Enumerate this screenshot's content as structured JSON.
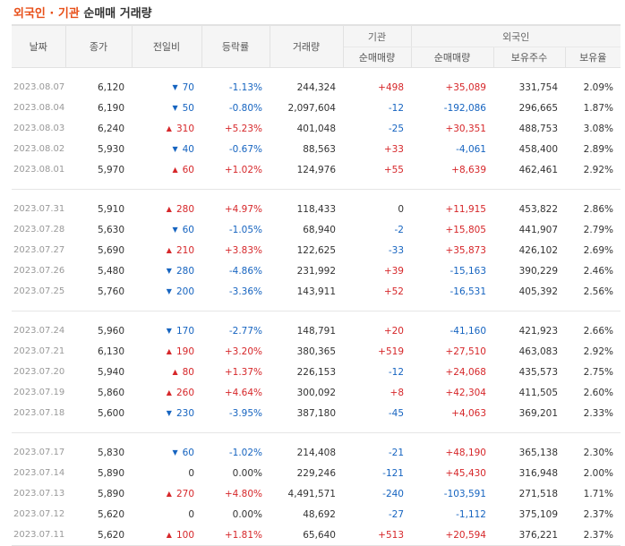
{
  "title": {
    "part1": "외국인",
    "dot": "·",
    "part2": "기관",
    "rest": "순매매 거래량"
  },
  "headers": {
    "date": "날짜",
    "close": "종가",
    "change": "전일비",
    "rate": "등락률",
    "volume": "거래량",
    "inst_group": "기관",
    "inst_net": "순매매량",
    "foreign_group": "외국인",
    "foreign_net": "순매매량",
    "foreign_hold": "보유주수",
    "foreign_ratio": "보유율"
  },
  "colors": {
    "up": "#d6272a",
    "down": "#1664c0",
    "accent": "#e8501a"
  },
  "icons": {
    "up": "arrow-up-icon",
    "down": "arrow-down-icon"
  },
  "rows": [
    {
      "date": "2023.08.07",
      "close": "6,120",
      "dir": "down",
      "change": "70",
      "rate": "-1.13%",
      "volume": "244,324",
      "inst": "+498",
      "foreign": "+35,089",
      "hold": "331,754",
      "ratio": "2.09%"
    },
    {
      "date": "2023.08.04",
      "close": "6,190",
      "dir": "down",
      "change": "50",
      "rate": "-0.80%",
      "volume": "2,097,604",
      "inst": "-12",
      "foreign": "-192,086",
      "hold": "296,665",
      "ratio": "1.87%"
    },
    {
      "date": "2023.08.03",
      "close": "6,240",
      "dir": "up",
      "change": "310",
      "rate": "+5.23%",
      "volume": "401,048",
      "inst": "-25",
      "foreign": "+30,351",
      "hold": "488,753",
      "ratio": "3.08%"
    },
    {
      "date": "2023.08.02",
      "close": "5,930",
      "dir": "down",
      "change": "40",
      "rate": "-0.67%",
      "volume": "88,563",
      "inst": "+33",
      "foreign": "-4,061",
      "hold": "458,400",
      "ratio": "2.89%"
    },
    {
      "date": "2023.08.01",
      "close": "5,970",
      "dir": "up",
      "change": "60",
      "rate": "+1.02%",
      "volume": "124,976",
      "inst": "+55",
      "foreign": "+8,639",
      "hold": "462,461",
      "ratio": "2.92%"
    },
    {
      "date": "2023.07.31",
      "close": "5,910",
      "dir": "up",
      "change": "280",
      "rate": "+4.97%",
      "volume": "118,433",
      "inst": "0",
      "foreign": "+11,915",
      "hold": "453,822",
      "ratio": "2.86%"
    },
    {
      "date": "2023.07.28",
      "close": "5,630",
      "dir": "down",
      "change": "60",
      "rate": "-1.05%",
      "volume": "68,940",
      "inst": "-2",
      "foreign": "+15,805",
      "hold": "441,907",
      "ratio": "2.79%"
    },
    {
      "date": "2023.07.27",
      "close": "5,690",
      "dir": "up",
      "change": "210",
      "rate": "+3.83%",
      "volume": "122,625",
      "inst": "-33",
      "foreign": "+35,873",
      "hold": "426,102",
      "ratio": "2.69%"
    },
    {
      "date": "2023.07.26",
      "close": "5,480",
      "dir": "down",
      "change": "280",
      "rate": "-4.86%",
      "volume": "231,992",
      "inst": "+39",
      "foreign": "-15,163",
      "hold": "390,229",
      "ratio": "2.46%"
    },
    {
      "date": "2023.07.25",
      "close": "5,760",
      "dir": "down",
      "change": "200",
      "rate": "-3.36%",
      "volume": "143,911",
      "inst": "+52",
      "foreign": "-16,531",
      "hold": "405,392",
      "ratio": "2.56%"
    },
    {
      "date": "2023.07.24",
      "close": "5,960",
      "dir": "down",
      "change": "170",
      "rate": "-2.77%",
      "volume": "148,791",
      "inst": "+20",
      "foreign": "-41,160",
      "hold": "421,923",
      "ratio": "2.66%"
    },
    {
      "date": "2023.07.21",
      "close": "6,130",
      "dir": "up",
      "change": "190",
      "rate": "+3.20%",
      "volume": "380,365",
      "inst": "+519",
      "foreign": "+27,510",
      "hold": "463,083",
      "ratio": "2.92%"
    },
    {
      "date": "2023.07.20",
      "close": "5,940",
      "dir": "up",
      "change": "80",
      "rate": "+1.37%",
      "volume": "226,153",
      "inst": "-12",
      "foreign": "+24,068",
      "hold": "435,573",
      "ratio": "2.75%"
    },
    {
      "date": "2023.07.19",
      "close": "5,860",
      "dir": "up",
      "change": "260",
      "rate": "+4.64%",
      "volume": "300,092",
      "inst": "+8",
      "foreign": "+42,304",
      "hold": "411,505",
      "ratio": "2.60%"
    },
    {
      "date": "2023.07.18",
      "close": "5,600",
      "dir": "down",
      "change": "230",
      "rate": "-3.95%",
      "volume": "387,180",
      "inst": "-45",
      "foreign": "+4,063",
      "hold": "369,201",
      "ratio": "2.33%"
    },
    {
      "date": "2023.07.17",
      "close": "5,830",
      "dir": "down",
      "change": "60",
      "rate": "-1.02%",
      "volume": "214,408",
      "inst": "-21",
      "foreign": "+48,190",
      "hold": "365,138",
      "ratio": "2.30%"
    },
    {
      "date": "2023.07.14",
      "close": "5,890",
      "dir": "none",
      "change": "0",
      "rate": "0.00%",
      "volume": "229,246",
      "inst": "-121",
      "foreign": "+45,430",
      "hold": "316,948",
      "ratio": "2.00%"
    },
    {
      "date": "2023.07.13",
      "close": "5,890",
      "dir": "up",
      "change": "270",
      "rate": "+4.80%",
      "volume": "4,491,571",
      "inst": "-240",
      "foreign": "-103,591",
      "hold": "271,518",
      "ratio": "1.71%"
    },
    {
      "date": "2023.07.12",
      "close": "5,620",
      "dir": "none",
      "change": "0",
      "rate": "0.00%",
      "volume": "48,692",
      "inst": "-27",
      "foreign": "-1,112",
      "hold": "375,109",
      "ratio": "2.37%"
    },
    {
      "date": "2023.07.11",
      "close": "5,620",
      "dir": "up",
      "change": "100",
      "rate": "+1.81%",
      "volume": "65,640",
      "inst": "+513",
      "foreign": "+20,594",
      "hold": "376,221",
      "ratio": "2.37%"
    }
  ]
}
